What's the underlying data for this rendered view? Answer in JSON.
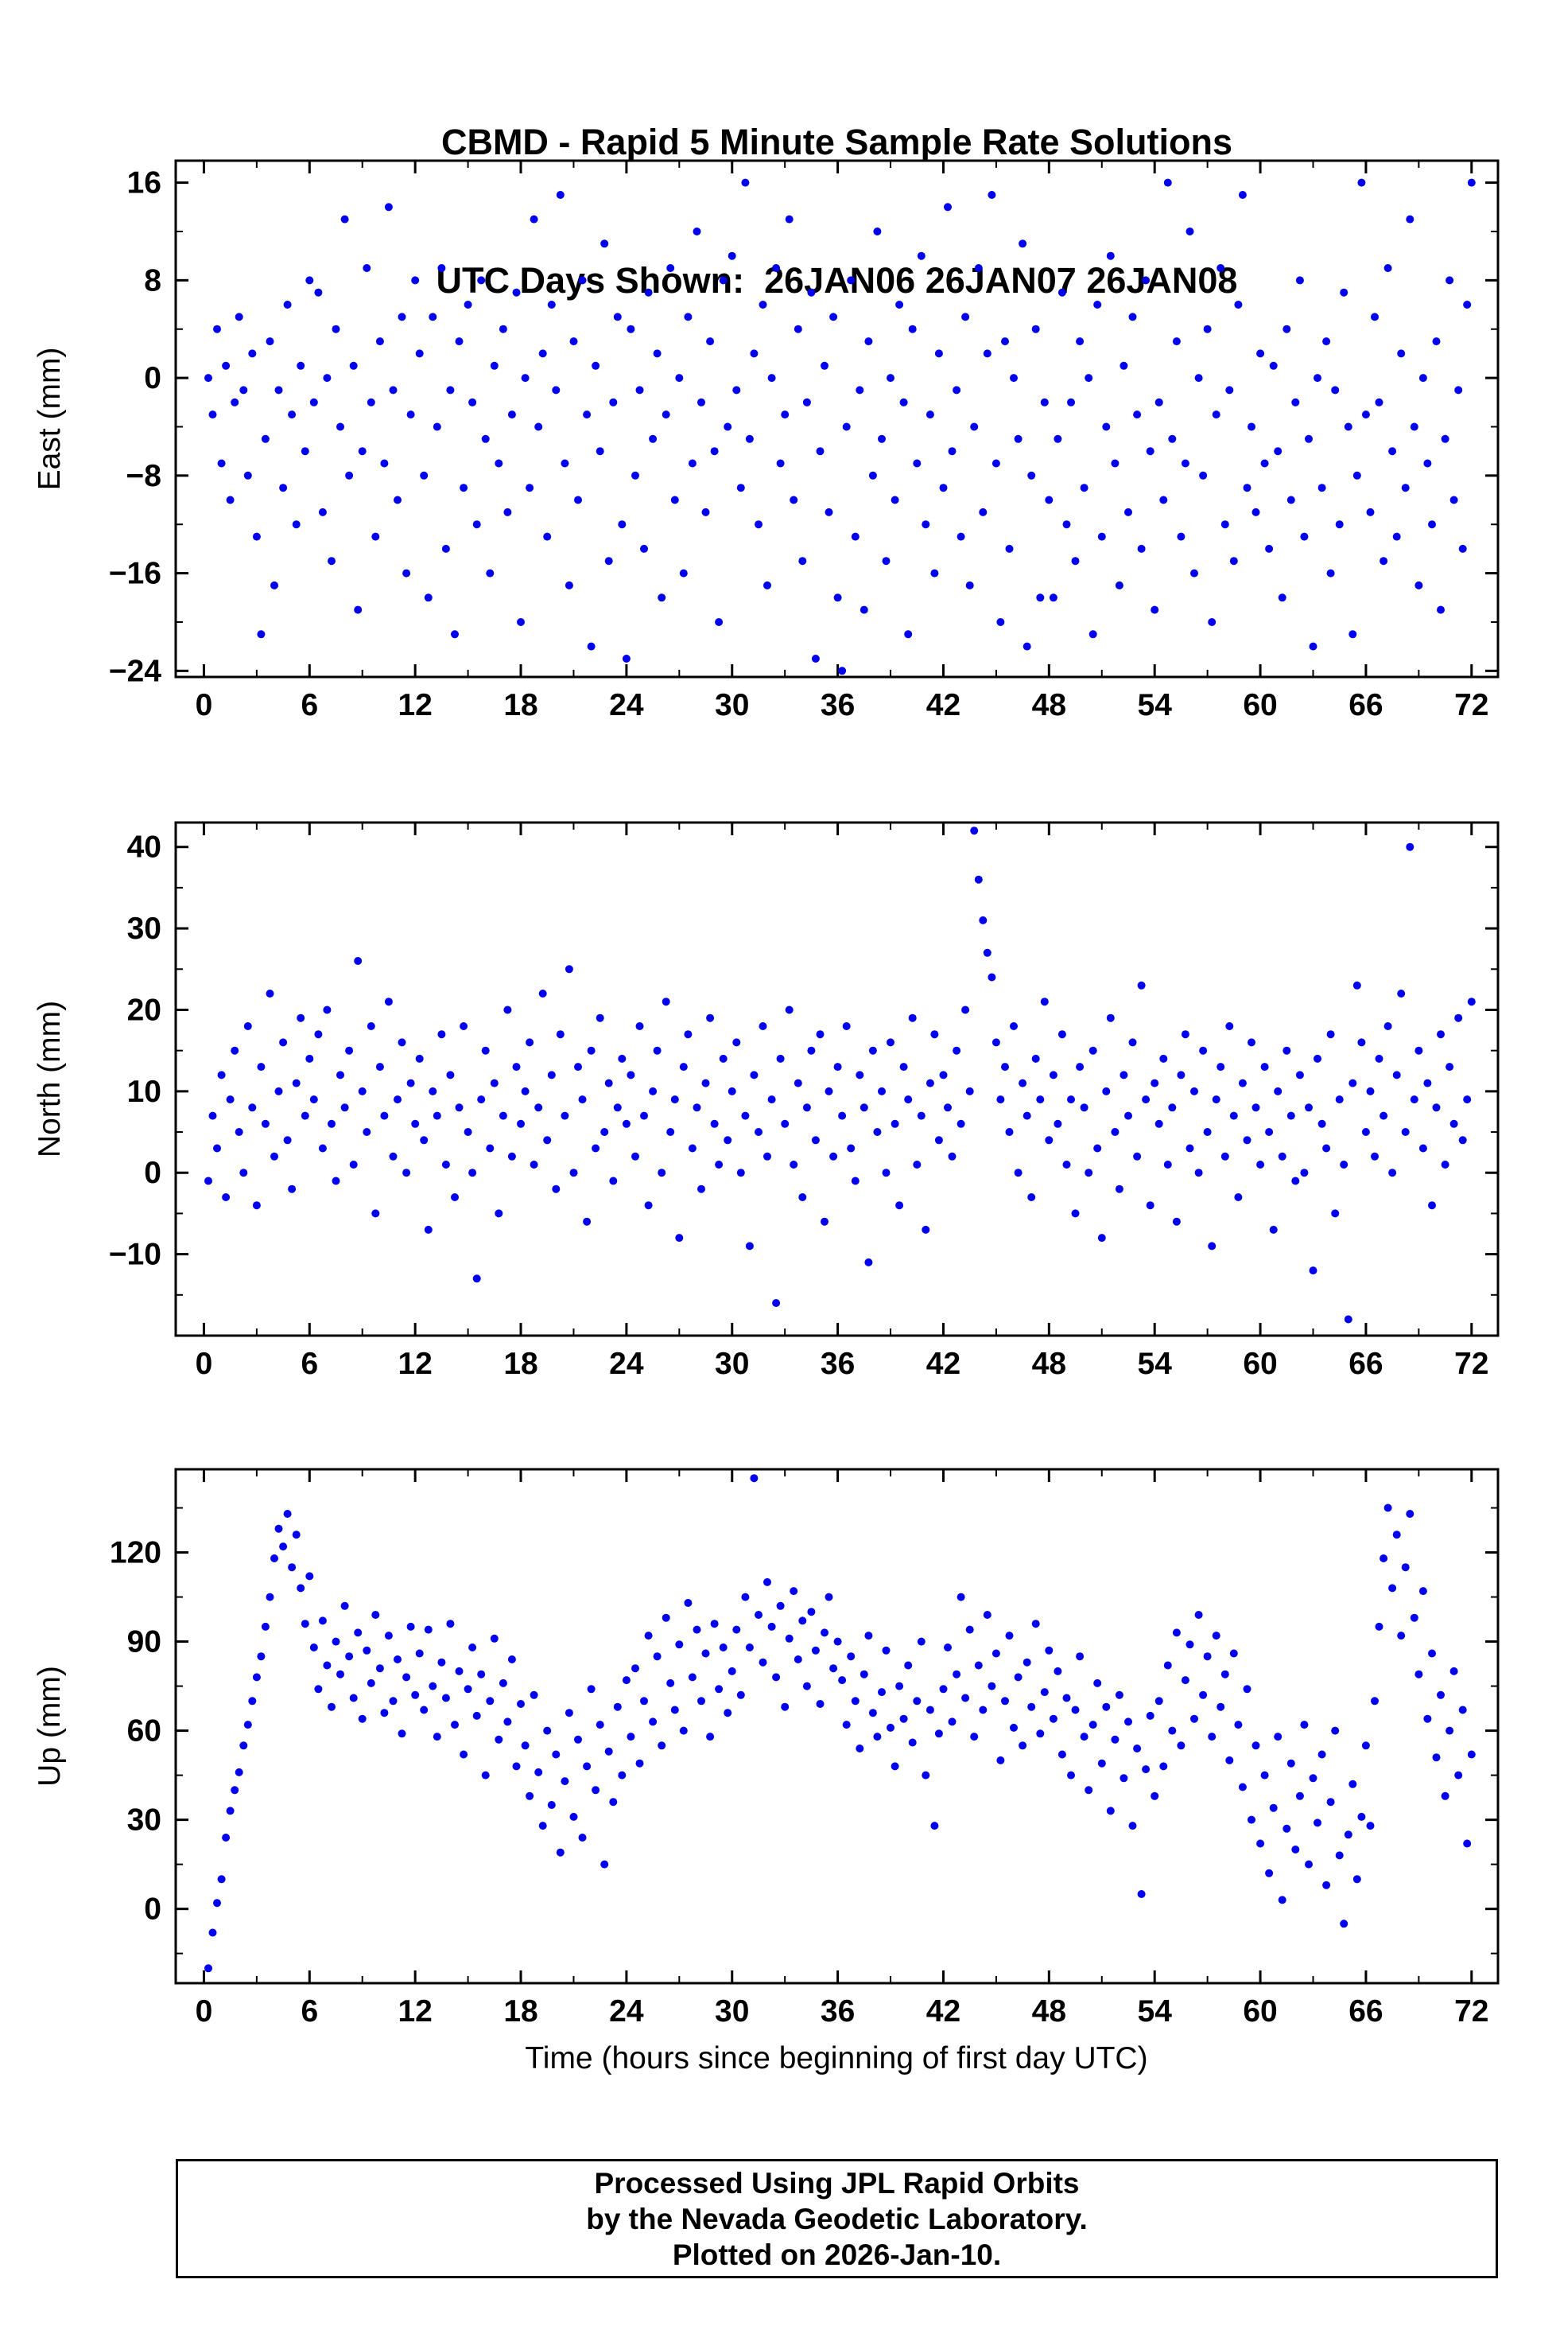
{
  "title": "CBMD - Rapid 5 Minute Sample Rate Solutions",
  "subtitle": "UTC Days Shown:  26JAN06 26JAN07 26JAN08",
  "footer": {
    "line1": "Processed Using JPL Rapid Orbits",
    "line2": "by the Nevada Geodetic Laboratory.",
    "line3": "Plotted on 2026-Jan-10."
  },
  "colors": {
    "point": "#0000EE",
    "frame": "#000000",
    "background": "#FFFFFF"
  },
  "chart_data": {
    "type": "scatter",
    "xlabel": "Time (hours since beginning of first day UTC)",
    "xlim": [
      -1.6,
      73.5
    ],
    "xticks": [
      0,
      6,
      12,
      18,
      24,
      30,
      36,
      42,
      48,
      54,
      60,
      66,
      72
    ],
    "x_minor_step": 3,
    "x_start": 0.25,
    "x_step": 0.25,
    "grid": false,
    "legend": "none",
    "plots": [
      {
        "name": "east",
        "ylabel": "East (mm)",
        "ylim": [
          -24.5,
          17.8
        ],
        "yticks": [
          -24,
          -16,
          -8,
          0,
          8,
          16
        ],
        "y_minor_step": 4,
        "values": [
          0,
          -3,
          4,
          -7,
          1,
          -10,
          -2,
          5,
          -1,
          -8,
          2,
          -13,
          -21,
          -5,
          3,
          -17,
          -1,
          -9,
          6,
          -3,
          -12,
          1,
          -6,
          8,
          -2,
          7,
          -11,
          0,
          -15,
          4,
          -4,
          13,
          -8,
          1,
          -19,
          -6,
          9,
          -2,
          -13,
          3,
          -7,
          14,
          -1,
          -10,
          5,
          -16,
          -3,
          8,
          2,
          -8,
          -18,
          5,
          -4,
          9,
          -14,
          -1,
          -21,
          3,
          -9,
          6,
          -2,
          -12,
          8,
          -5,
          -16,
          1,
          -7,
          4,
          -11,
          -3,
          7,
          -20,
          0,
          -9,
          13,
          -4,
          2,
          -13,
          6,
          -1,
          15,
          -7,
          -17,
          3,
          -10,
          8,
          -3,
          -22,
          1,
          -6,
          11,
          -15,
          -2,
          5,
          -12,
          -23,
          4,
          -8,
          -1,
          -14,
          7,
          -5,
          2,
          -18,
          -3,
          9,
          -10,
          0,
          -16,
          5,
          -7,
          12,
          -2,
          -11,
          3,
          -6,
          -20,
          8,
          -4,
          10,
          -1,
          -9,
          16,
          -5,
          2,
          -12,
          6,
          -17,
          0,
          9,
          -7,
          -3,
          13,
          -10,
          4,
          -15,
          -2,
          7,
          -23,
          -6,
          1,
          -11,
          5,
          -18,
          -24,
          -4,
          8,
          -13,
          -1,
          -19,
          3,
          -8,
          12,
          -5,
          -15,
          0,
          -10,
          6,
          -2,
          -21,
          4,
          -7,
          10,
          -12,
          -3,
          -16,
          2,
          -9,
          14,
          -6,
          -1,
          -13,
          5,
          -17,
          -4,
          9,
          -11,
          2,
          15,
          -7,
          -20,
          3,
          -14,
          0,
          -5,
          11,
          -22,
          -8,
          4,
          -18,
          -2,
          -10,
          -18,
          -5,
          7,
          -12,
          -2,
          -15,
          3,
          -9,
          0,
          -21,
          6,
          -13,
          -4,
          10,
          -7,
          -17,
          1,
          -11,
          5,
          -3,
          -14,
          8,
          -6,
          -19,
          -2,
          -10,
          16,
          -5,
          3,
          -13,
          -7,
          12,
          -16,
          0,
          -8,
          4,
          -20,
          -3,
          9,
          -12,
          -1,
          -15,
          6,
          15,
          -9,
          -4,
          -11,
          2,
          -7,
          -14,
          1,
          -6,
          -18,
          4,
          -10,
          -2,
          8,
          -13,
          -5,
          -22,
          0,
          -9,
          3,
          -16,
          -1,
          -12,
          7,
          -4,
          -21,
          -8,
          16,
          -3,
          -11,
          5,
          -2,
          -15,
          9,
          -6,
          -13,
          2,
          -9,
          13,
          -4,
          -17,
          0,
          -7,
          -12,
          3,
          -19,
          -5,
          8,
          -10,
          -1,
          -14,
          6,
          16
        ]
      },
      {
        "name": "north",
        "ylabel": "North (mm)",
        "ylim": [
          -20,
          43
        ],
        "yticks": [
          -10,
          0,
          10,
          20,
          30,
          40
        ],
        "y_minor_step": 5,
        "values": [
          -1,
          7,
          3,
          12,
          -3,
          9,
          15,
          5,
          0,
          18,
          8,
          -4,
          13,
          6,
          22,
          2,
          10,
          16,
          4,
          -2,
          11,
          19,
          7,
          14,
          9,
          17,
          3,
          20,
          6,
          -1,
          12,
          8,
          15,
          1,
          26,
          10,
          5,
          18,
          -5,
          13,
          7,
          21,
          2,
          9,
          16,
          0,
          11,
          6,
          14,
          4,
          -7,
          10,
          7,
          17,
          1,
          12,
          -3,
          8,
          18,
          5,
          0,
          -13,
          9,
          15,
          3,
          11,
          -5,
          7,
          20,
          2,
          13,
          6,
          10,
          16,
          1,
          8,
          22,
          4,
          12,
          -2,
          17,
          7,
          25,
          0,
          13,
          9,
          -6,
          15,
          3,
          19,
          5,
          11,
          -1,
          8,
          14,
          6,
          12,
          2,
          18,
          7,
          -4,
          10,
          15,
          0,
          21,
          5,
          9,
          -8,
          13,
          17,
          3,
          8,
          -2,
          11,
          19,
          6,
          1,
          14,
          4,
          10,
          16,
          0,
          7,
          -9,
          12,
          5,
          18,
          2,
          9,
          -16,
          14,
          6,
          20,
          1,
          11,
          -3,
          8,
          15,
          4,
          17,
          -6,
          10,
          2,
          13,
          7,
          18,
          3,
          -1,
          12,
          8,
          -11,
          15,
          5,
          10,
          0,
          16,
          6,
          -4,
          13,
          9,
          19,
          1,
          7,
          -7,
          11,
          17,
          4,
          12,
          8,
          2,
          15,
          6,
          20,
          10,
          42,
          36,
          31,
          27,
          24,
          16,
          9,
          13,
          5,
          18,
          0,
          11,
          7,
          -3,
          14,
          9,
          21,
          4,
          12,
          6,
          17,
          1,
          9,
          -5,
          13,
          8,
          0,
          15,
          3,
          -8,
          10,
          19,
          5,
          -2,
          12,
          7,
          16,
          2,
          23,
          9,
          -4,
          11,
          6,
          14,
          1,
          8,
          -6,
          12,
          17,
          3,
          10,
          0,
          15,
          5,
          -9,
          9,
          13,
          2,
          18,
          7,
          -3,
          11,
          4,
          16,
          8,
          1,
          13,
          5,
          -7,
          10,
          2,
          15,
          7,
          -1,
          12,
          0,
          8,
          -12,
          14,
          6,
          3,
          17,
          -5,
          9,
          1,
          -18,
          11,
          23,
          16,
          5,
          10,
          2,
          14,
          7,
          18,
          0,
          12,
          22,
          5,
          40,
          9,
          15,
          3,
          11,
          -4,
          8,
          17,
          1,
          13,
          6,
          19,
          4,
          9,
          21
        ]
      },
      {
        "name": "up",
        "ylabel": "Up (mm)",
        "ylim": [
          -25,
          148
        ],
        "yticks": [
          0,
          30,
          60,
          90,
          120
        ],
        "y_minor_step": 15,
        "values": [
          -20,
          -8,
          2,
          10,
          24,
          33,
          40,
          46,
          55,
          62,
          70,
          78,
          85,
          95,
          105,
          118,
          128,
          122,
          133,
          115,
          126,
          108,
          96,
          112,
          88,
          74,
          97,
          82,
          68,
          90,
          79,
          102,
          85,
          71,
          93,
          64,
          87,
          76,
          99,
          81,
          66,
          92,
          70,
          84,
          59,
          78,
          95,
          72,
          86,
          67,
          94,
          75,
          58,
          83,
          71,
          96,
          62,
          80,
          52,
          74,
          88,
          65,
          79,
          45,
          70,
          91,
          57,
          76,
          63,
          84,
          48,
          69,
          55,
          38,
          72,
          46,
          28,
          60,
          35,
          52,
          19,
          43,
          66,
          31,
          57,
          24,
          48,
          74,
          40,
          62,
          15,
          53,
          36,
          68,
          45,
          77,
          58,
          81,
          49,
          70,
          92,
          63,
          85,
          55,
          98,
          76,
          67,
          89,
          60,
          103,
          78,
          94,
          70,
          86,
          58,
          96,
          74,
          88,
          66,
          80,
          94,
          72,
          105,
          88,
          145,
          99,
          83,
          110,
          95,
          78,
          102,
          68,
          91,
          107,
          84,
          97,
          75,
          100,
          87,
          69,
          93,
          105,
          81,
          90,
          77,
          62,
          85,
          70,
          54,
          79,
          92,
          66,
          58,
          73,
          87,
          61,
          48,
          75,
          64,
          82,
          56,
          70,
          90,
          45,
          67,
          28,
          59,
          74,
          88,
          63,
          79,
          105,
          71,
          94,
          58,
          82,
          67,
          99,
          75,
          86,
          50,
          70,
          92,
          61,
          78,
          55,
          83,
          68,
          96,
          59,
          73,
          87,
          64,
          80,
          52,
          71,
          45,
          67,
          85,
          58,
          40,
          62,
          76,
          49,
          68,
          33,
          57,
          72,
          44,
          63,
          28,
          54,
          5,
          47,
          65,
          38,
          70,
          48,
          82,
          60,
          93,
          55,
          77,
          89,
          64,
          99,
          72,
          85,
          58,
          92,
          68,
          79,
          50,
          86,
          62,
          41,
          74,
          30,
          55,
          22,
          45,
          12,
          34,
          58,
          3,
          27,
          49,
          20,
          38,
          62,
          15,
          44,
          29,
          52,
          8,
          36,
          60,
          18,
          -5,
          25,
          42,
          10,
          31,
          55,
          28,
          70,
          95,
          118,
          135,
          108,
          126,
          92,
          115,
          133,
          98,
          79,
          107,
          64,
          86,
          51,
          72,
          38,
          60,
          80,
          45,
          67,
          22,
          52
        ]
      }
    ]
  }
}
